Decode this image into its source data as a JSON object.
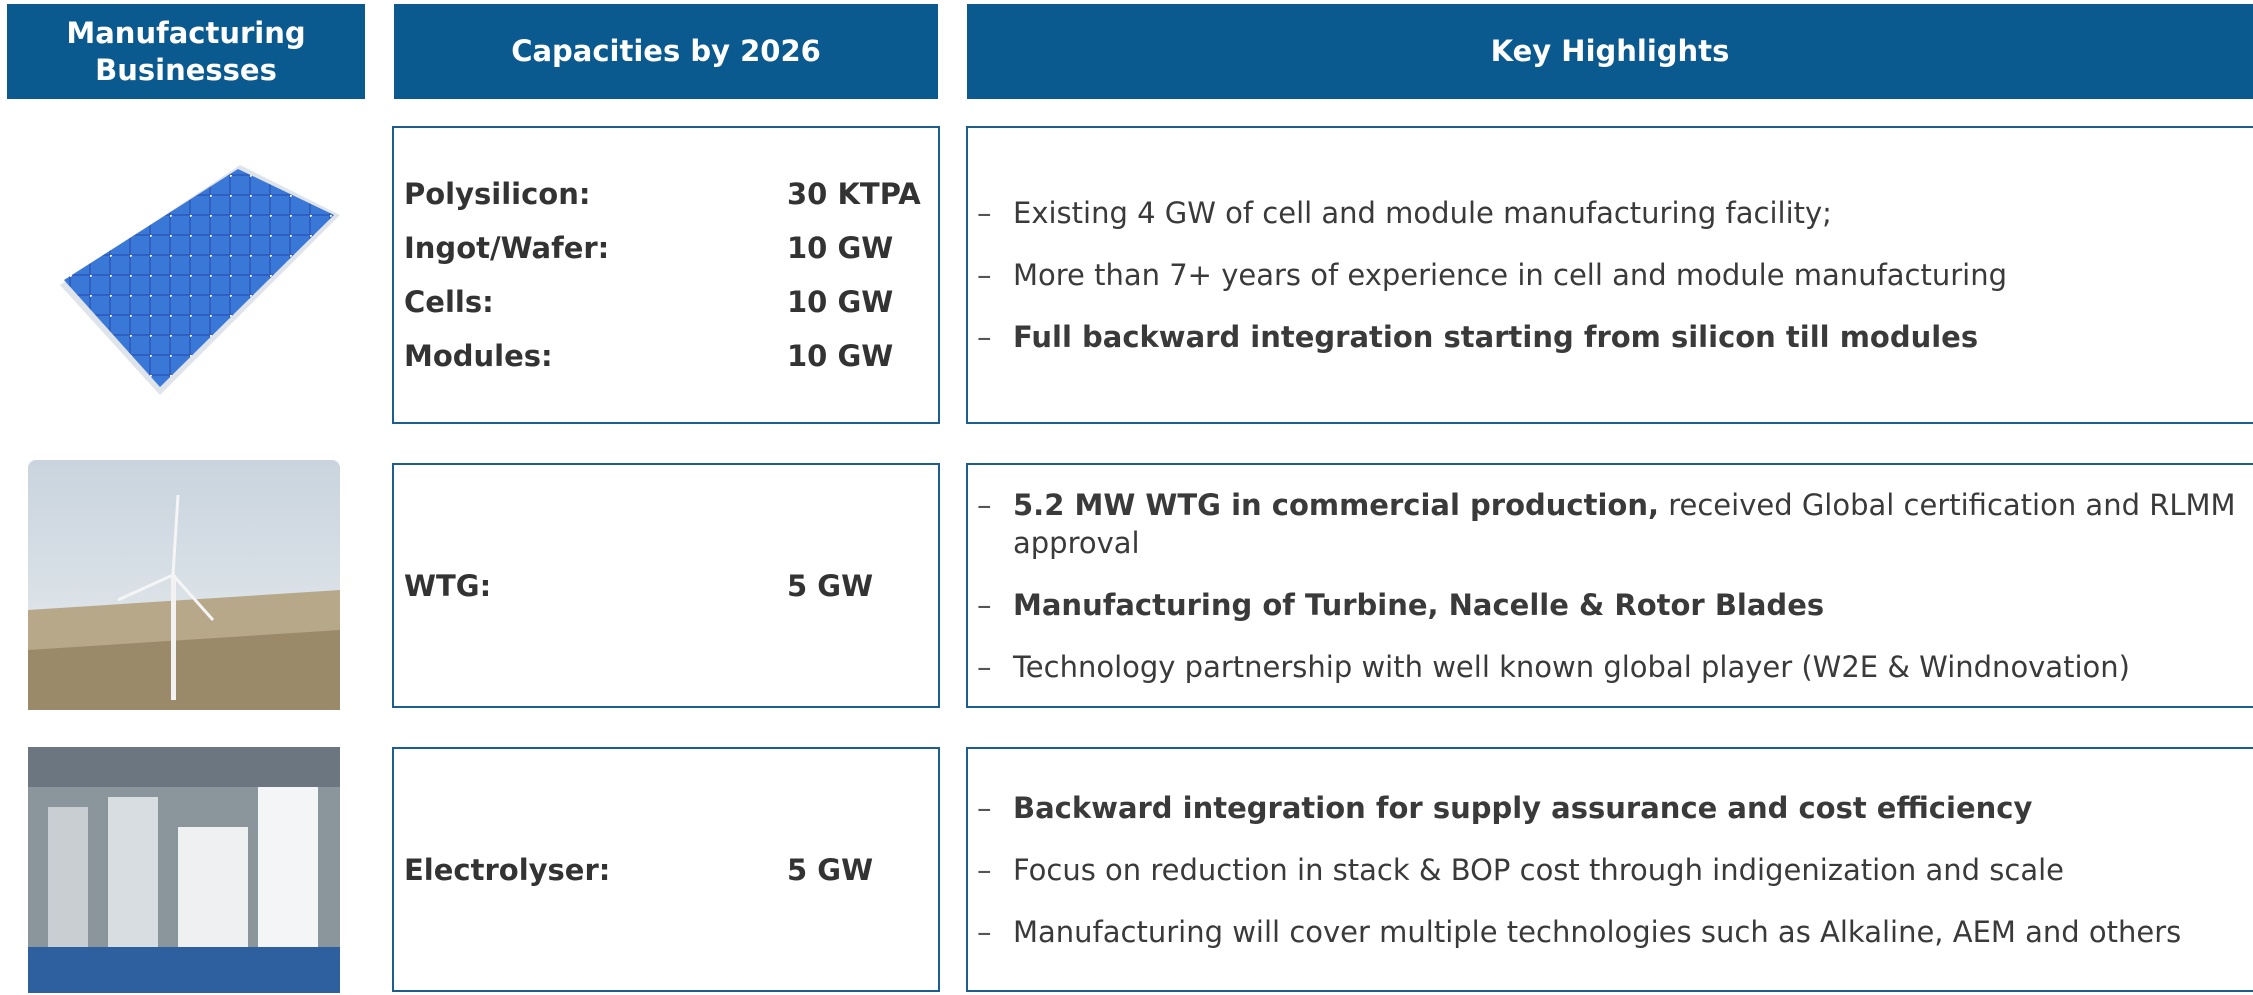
{
  "headers": [
    "Manufacturing Businesses",
    "Capacities by 2026",
    "Key Highlights"
  ],
  "rows": [
    {
      "capacities": [
        {
          "label": "Polysilicon:",
          "value": "30 KTPA"
        },
        {
          "label": "Ingot/Wafer:",
          "value": "10 GW"
        },
        {
          "label": "Cells:",
          "value": "10 GW"
        },
        {
          "label": "Modules:",
          "value": "10 GW"
        }
      ],
      "highlights": [
        [
          {
            "text": "Existing 4 GW of cell and module manufacturing facility;"
          }
        ],
        [
          {
            "text": "More than 7+ years of experience in cell and module manufacturing"
          }
        ],
        [
          {
            "text": "Full backward integration starting from silicon till modules",
            "bold": true
          }
        ]
      ]
    },
    {
      "capacities": [
        {
          "label": "WTG:",
          "value": "5 GW"
        }
      ],
      "highlights": [
        [
          {
            "text": "5.2 MW WTG in commercial production,",
            "bold": true
          },
          {
            "text": " received Global certification and RLMM approval"
          }
        ],
        [
          {
            "text": "Manufacturing of Turbine, Nacelle & Rotor Blades",
            "bold": true
          }
        ],
        [
          {
            "text": "Technology partnership with well known global player (W2E & Windnovation)"
          }
        ]
      ]
    },
    {
      "capacities": [
        {
          "label": "Electrolyser:",
          "value": "5 GW"
        }
      ],
      "highlights": [
        [
          {
            "text": "Backward integration for supply assurance and cost efficiency",
            "bold": true
          }
        ],
        [
          {
            "text": "Focus on reduction in stack & BOP cost through indigenization and scale"
          }
        ],
        [
          {
            "text": "Manufacturing will cover multiple technologies such as Alkaline, AEM and others"
          }
        ]
      ]
    }
  ]
}
